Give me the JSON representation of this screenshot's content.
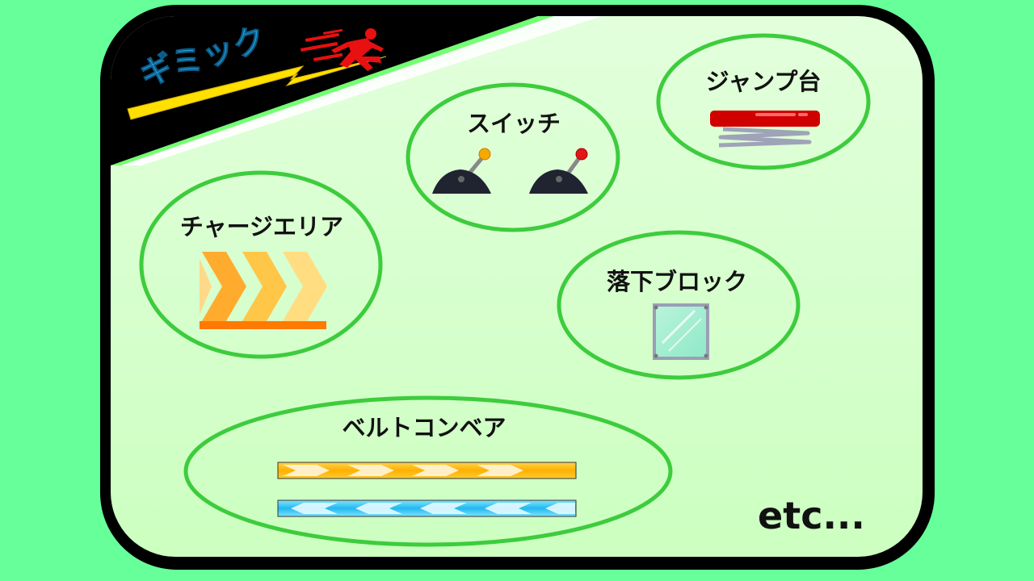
{
  "header": {
    "title": "ギミック",
    "icon": "running-figure-icon"
  },
  "gimmicks": [
    {
      "id": "switch",
      "label": "スイッチ",
      "icon": "lever-switch-icon"
    },
    {
      "id": "jump-pad",
      "label": "ジャンプ台",
      "icon": "spring-pad-icon"
    },
    {
      "id": "charge-area",
      "label": "チャージエリア",
      "icon": "chevron-arrows-icon"
    },
    {
      "id": "falling-block",
      "label": "落下ブロック",
      "icon": "glass-block-icon"
    },
    {
      "id": "conveyor",
      "label": "ベルトコンベア",
      "icon": "conveyor-arrows-icon"
    }
  ],
  "footer": {
    "etc": "etc..."
  },
  "colors": {
    "background": "#66ff99",
    "panel": "#d7ffcf",
    "border": "#000000",
    "ellipse": "#3dcc3d",
    "title": "#22a6e8",
    "accent_yellow": "#ffe000",
    "runner_red": "#e81010"
  }
}
